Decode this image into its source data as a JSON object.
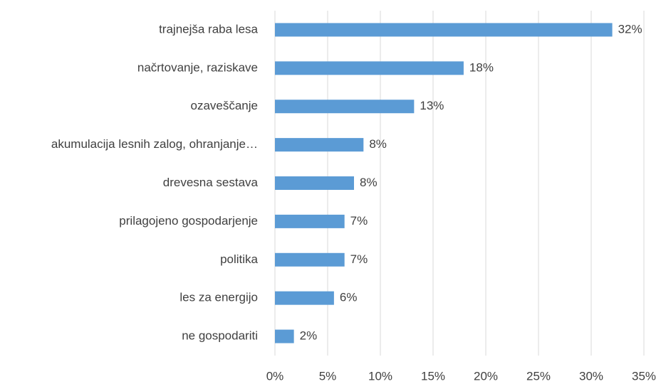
{
  "chart_data": {
    "type": "hbar",
    "categories": [
      "trajnejša raba lesa",
      "načrtovanje, raziskave",
      "ozaveščanje",
      "akumulacija lesnih zalog, ohranjanje…",
      "drevesna sestava",
      "prilagojeno gospodarjenje",
      "politika",
      "les za energijo",
      "ne gospodariti"
    ],
    "values": [
      32,
      17.9,
      13.2,
      8.4,
      7.5,
      6.6,
      6.6,
      5.6,
      1.8
    ],
    "value_labels": [
      "32%",
      "18%",
      "13%",
      "8%",
      "8%",
      "7%",
      "7%",
      "6%",
      "2%"
    ],
    "color": "#5b9bd5",
    "xlim": [
      0,
      35
    ],
    "xticks": [
      {
        "value": 0,
        "label": "0%"
      },
      {
        "value": 5,
        "label": "5%"
      },
      {
        "value": 10,
        "label": "10%"
      },
      {
        "value": 15,
        "label": "15%"
      },
      {
        "value": 20,
        "label": "20%"
      },
      {
        "value": 25,
        "label": "25%"
      },
      {
        "value": 30,
        "label": "30%"
      },
      {
        "value": 35,
        "label": "35%"
      }
    ],
    "grid": true
  }
}
